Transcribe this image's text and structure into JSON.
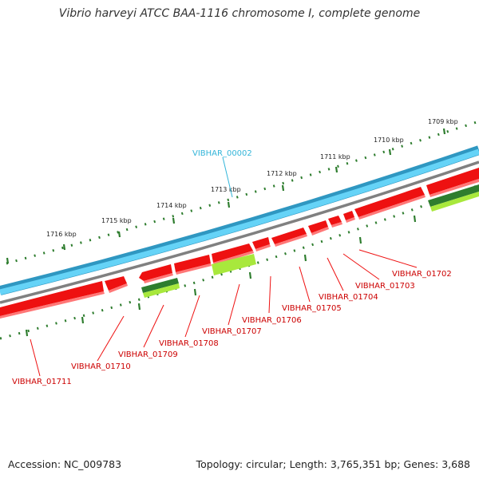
{
  "title": "Vibrio harveyi ATCC BAA-1116 chromosome I, complete genome",
  "footer": {
    "accession": "Accession: NC_009783",
    "stats": "Topology: circular; Length: 3,765,351 bp; Genes: 3,688"
  },
  "ticks": [
    "1709 kbp",
    "1710 kbp",
    "1711 kbp",
    "1712 kbp",
    "1713 kbp",
    "1714 kbp",
    "1715 kbp",
    "1716 kbp"
  ],
  "top_label": "VIBHAR_00002",
  "gene_labels": [
    "VIBHAR_01702",
    "VIBHAR_01703",
    "VIBHAR_01704",
    "VIBHAR_01705",
    "VIBHAR_01706",
    "VIBHAR_01707",
    "VIBHAR_01708",
    "VIBHAR_01709",
    "VIBHAR_01710",
    "VIBHAR_01711"
  ],
  "colors": {
    "blue_outer": "#2f97c1",
    "blue_inner": "#65d3f7",
    "gray": "#808080",
    "gene_red": "#ee1111",
    "dark_green": "#2e7d2e",
    "light_green": "#a8e83c",
    "tick_green": "#2e7d2e"
  }
}
